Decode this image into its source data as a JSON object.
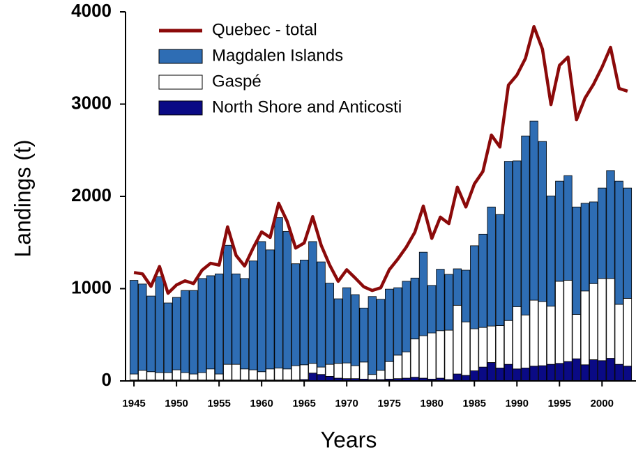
{
  "chart_data": {
    "type": "bar",
    "x_label": "Years",
    "y_label": "Landings (t)",
    "x": [
      1945,
      1946,
      1947,
      1948,
      1949,
      1950,
      1951,
      1952,
      1953,
      1954,
      1955,
      1956,
      1957,
      1958,
      1959,
      1960,
      1961,
      1962,
      1963,
      1964,
      1965,
      1966,
      1967,
      1968,
      1969,
      1970,
      1971,
      1972,
      1973,
      1974,
      1975,
      1976,
      1977,
      1978,
      1979,
      1980,
      1981,
      1982,
      1983,
      1984,
      1985,
      1986,
      1987,
      1988,
      1989,
      1990,
      1991,
      1992,
      1993,
      1994,
      1995,
      1996,
      1997,
      1998,
      1999,
      2000,
      2001,
      2002,
      2003
    ],
    "xlim": [
      1944.5,
      2003.5
    ],
    "xticks": [
      1945,
      1950,
      1955,
      1960,
      1965,
      1970,
      1975,
      1980,
      1985,
      1990,
      1995,
      2000
    ],
    "ylim": [
      0,
      4000
    ],
    "yticks": [
      0,
      1000,
      2000,
      3000,
      4000
    ],
    "legend": "top-left",
    "series": [
      {
        "name": "Quebec - total",
        "type": "line",
        "color": "#8b0a0a",
        "values": [
          1175,
          1160,
          1025,
          1240,
          950,
          1040,
          1085,
          1055,
          1200,
          1275,
          1255,
          1670,
          1360,
          1245,
          1440,
          1615,
          1555,
          1925,
          1730,
          1440,
          1495,
          1780,
          1470,
          1255,
          1080,
          1205,
          1115,
          1020,
          980,
          1010,
          1205,
          1320,
          1450,
          1610,
          1895,
          1545,
          1775,
          1705,
          2100,
          1885,
          2135,
          2270,
          2665,
          2535,
          3205,
          3315,
          3495,
          3840,
          3595,
          2995,
          3420,
          3510,
          2830,
          3065,
          3215,
          3400,
          3615,
          3170,
          3140
        ]
      },
      {
        "name": "Magdalen Islands",
        "type": "bar",
        "color": "#2e6db4",
        "values": [
          1015,
          935,
          820,
          1040,
          755,
          785,
          890,
          905,
          1020,
          1010,
          1085,
          1290,
          980,
          980,
          1180,
          1410,
          1290,
          1630,
          1490,
          1105,
          1135,
          1320,
          1140,
          880,
          700,
          815,
          770,
          585,
          845,
          770,
          785,
          730,
          765,
          660,
          905,
          515,
          665,
          605,
          395,
          560,
          900,
          1010,
          1290,
          1205,
          1725,
          1580,
          1940,
          1940,
          1735,
          1195,
          1085,
          1135,
          1165,
          950,
          885,
          980,
          1170,
          1335,
          1195
        ]
      },
      {
        "name": "Gaspé",
        "type": "bar",
        "color": "#ffffff",
        "values": [
          65,
          105,
          90,
          80,
          80,
          110,
          80,
          65,
          80,
          120,
          65,
          170,
          170,
          120,
          110,
          90,
          120,
          130,
          120,
          155,
          160,
          105,
          80,
          130,
          160,
          170,
          140,
          185,
          55,
          100,
          190,
          255,
          285,
          415,
          460,
          500,
          515,
          535,
          745,
          580,
          455,
          430,
          395,
          460,
          475,
          675,
          575,
          715,
          695,
          630,
          890,
          880,
          480,
          800,
          825,
          890,
          865,
          650,
          735
        ]
      },
      {
        "name": "North Shore and Anticosti",
        "type": "bar",
        "color": "#0a0a85",
        "values": [
          10,
          10,
          10,
          10,
          10,
          10,
          10,
          10,
          10,
          10,
          10,
          10,
          10,
          10,
          10,
          10,
          10,
          10,
          10,
          10,
          15,
          85,
          70,
          50,
          30,
          25,
          25,
          20,
          15,
          15,
          20,
          25,
          30,
          40,
          30,
          20,
          30,
          15,
          75,
          60,
          110,
          150,
          200,
          140,
          180,
          130,
          140,
          160,
          165,
          180,
          190,
          210,
          240,
          175,
          230,
          220,
          245,
          180,
          160
        ]
      }
    ]
  }
}
